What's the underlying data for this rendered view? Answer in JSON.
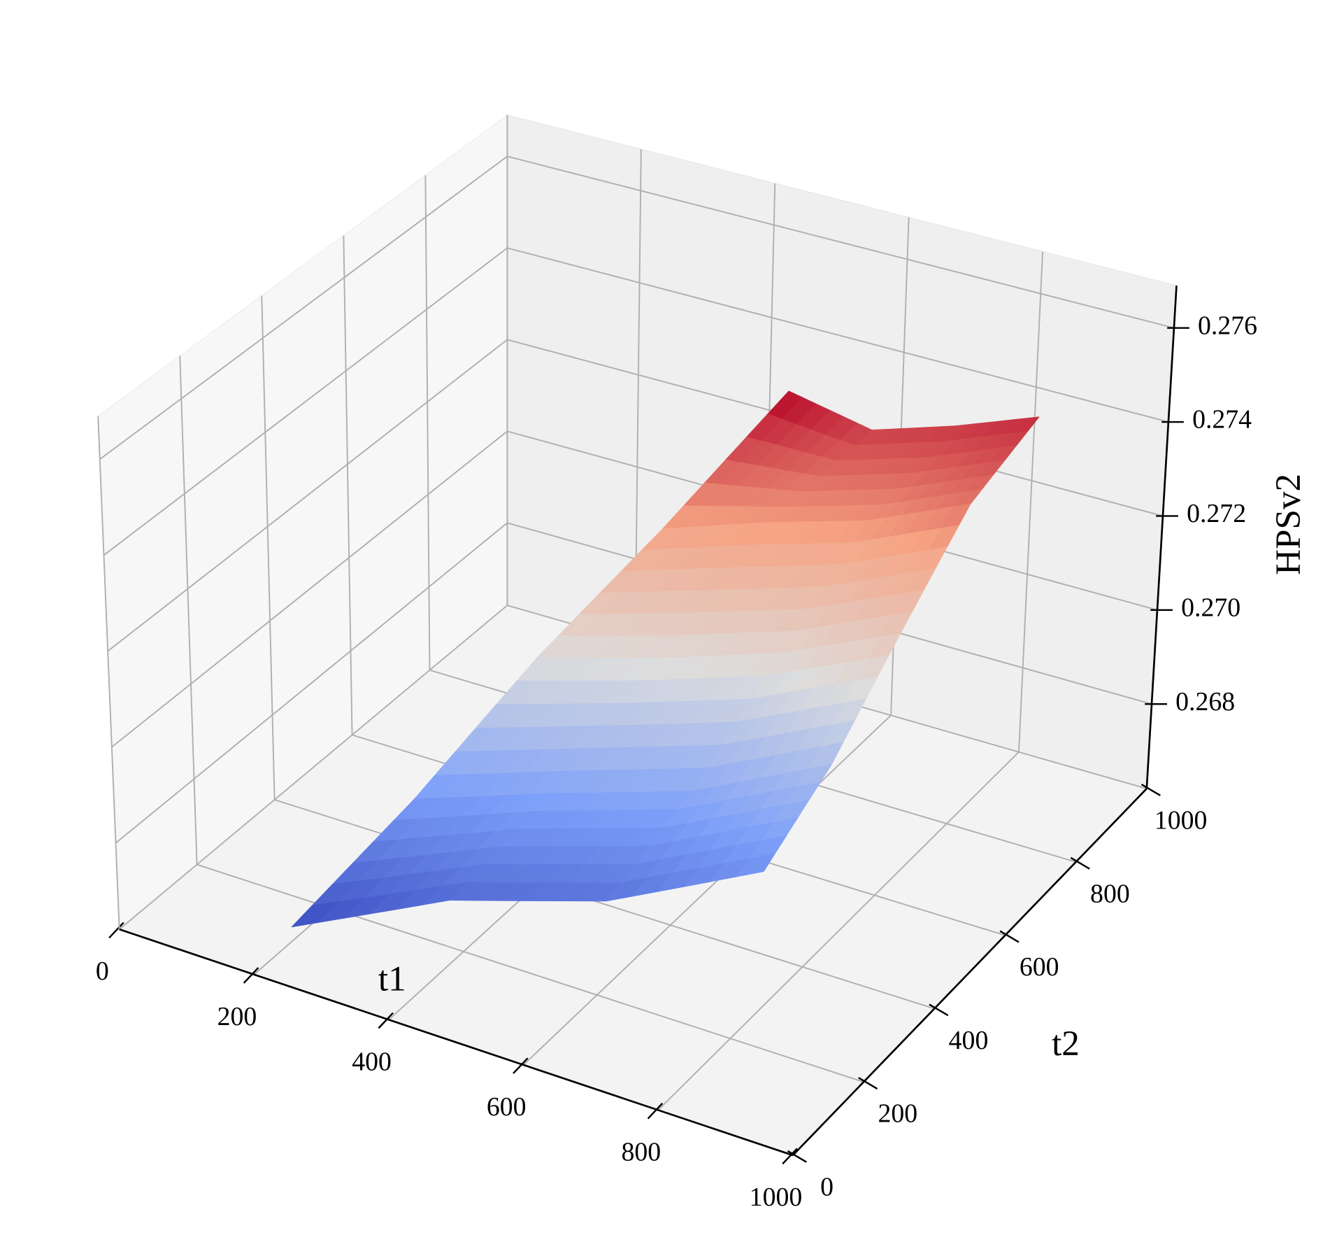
{
  "chart_data": {
    "type": "surface",
    "xlabel": "t1",
    "ylabel": "t2",
    "zlabel": "HPSv2",
    "xlim": [
      0,
      1000
    ],
    "ylim": [
      0,
      1000
    ],
    "zlim": [
      0.2662,
      0.2769
    ],
    "xticks": [
      0,
      200,
      400,
      600,
      800,
      1000
    ],
    "yticks": [
      0,
      200,
      400,
      600,
      800,
      1000
    ],
    "zticks": [
      0.268,
      {
        "value": 0.27,
        "label": "0.270"
      },
      0.272,
      0.274,
      0.276
    ],
    "colormap": "coolwarm",
    "grid": true,
    "x": [
      [
        200,
        387,
        573,
        760
      ],
      [
        295,
        459,
        623,
        788
      ],
      [
        390,
        532,
        673,
        815
      ],
      [
        485,
        604,
        724,
        843
      ],
      [
        580,
        677,
        773,
        870
      ]
    ],
    "y": [
      [
        100,
        187,
        273,
        360
      ],
      [
        258,
        335,
        413,
        490
      ],
      [
        415,
        483,
        552,
        620
      ],
      [
        573,
        632,
        691,
        750
      ],
      [
        730,
        780,
        830,
        880
      ]
    ],
    "z": [
      [
        0.2665,
        0.2673,
        0.2675,
        0.2683
      ],
      [
        0.2685,
        0.2688,
        0.269,
        0.2697
      ],
      [
        0.2708,
        0.2709,
        0.2711,
        0.2716
      ],
      [
        0.2728,
        0.273,
        0.2731,
        0.2735
      ],
      [
        0.275,
        0.2742,
        0.2743,
        0.2745
      ]
    ]
  }
}
